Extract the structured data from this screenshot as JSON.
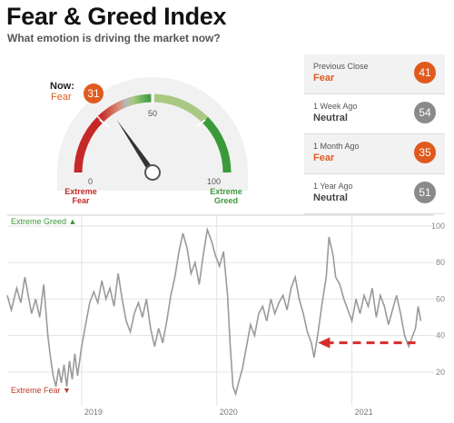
{
  "header": {
    "title": "Fear & Greed Index",
    "subtitle": "What emotion is driving the market now?"
  },
  "gauge": {
    "now_label": "Now:",
    "now_state": "Fear",
    "now_value": 31,
    "min_tick": "0",
    "mid_tick": "50",
    "max_tick": "100",
    "left_caption_1": "Extreme",
    "left_caption_2": "Fear",
    "right_caption_1": "Extreme",
    "right_caption_2": "Greed"
  },
  "history": [
    {
      "label": "Previous Close",
      "state": "Fear",
      "value": "41"
    },
    {
      "label": "1 Week Ago",
      "state": "Neutral",
      "value": "54"
    },
    {
      "label": "1 Month Ago",
      "state": "Fear",
      "value": "35"
    },
    {
      "label": "1 Year Ago",
      "state": "Neutral",
      "value": "51"
    }
  ],
  "colors": {
    "fear": "#e05a1e",
    "neutral": "#8a8a8a",
    "greed": "#3a9a3a",
    "extreme_fear": "#c0392b",
    "line": "#999999",
    "arrow": "#d62c2c"
  },
  "chart_data": {
    "type": "line",
    "top_label": "Extreme Greed",
    "bottom_label": "Extreme Fear",
    "yticks": [
      20,
      40,
      60,
      80,
      100
    ],
    "ylim": [
      5,
      102
    ],
    "year_labels": [
      {
        "label": "2019",
        "x": 2019.0
      },
      {
        "label": "2020",
        "x": 2020.0
      },
      {
        "label": "2021",
        "x": 2021.0
      }
    ],
    "xlim": [
      2018.45,
      2021.52
    ],
    "series": [
      {
        "points": [
          [
            2018.45,
            62
          ],
          [
            2018.48,
            54
          ],
          [
            2018.52,
            66
          ],
          [
            2018.55,
            58
          ],
          [
            2018.58,
            72
          ],
          [
            2018.61,
            60
          ],
          [
            2018.63,
            52
          ],
          [
            2018.66,
            60
          ],
          [
            2018.69,
            50
          ],
          [
            2018.72,
            68
          ],
          [
            2018.75,
            40
          ],
          [
            2018.77,
            28
          ],
          [
            2018.79,
            18
          ],
          [
            2018.81,
            12
          ],
          [
            2018.83,
            22
          ],
          [
            2018.85,
            14
          ],
          [
            2018.87,
            24
          ],
          [
            2018.89,
            12
          ],
          [
            2018.91,
            26
          ],
          [
            2018.93,
            16
          ],
          [
            2018.95,
            30
          ],
          [
            2018.97,
            18
          ],
          [
            2019.0,
            34
          ],
          [
            2019.03,
            46
          ],
          [
            2019.06,
            58
          ],
          [
            2019.09,
            64
          ],
          [
            2019.12,
            58
          ],
          [
            2019.15,
            70
          ],
          [
            2019.18,
            60
          ],
          [
            2019.21,
            66
          ],
          [
            2019.24,
            56
          ],
          [
            2019.27,
            74
          ],
          [
            2019.3,
            60
          ],
          [
            2019.33,
            48
          ],
          [
            2019.36,
            42
          ],
          [
            2019.39,
            52
          ],
          [
            2019.42,
            58
          ],
          [
            2019.45,
            50
          ],
          [
            2019.48,
            60
          ],
          [
            2019.51,
            44
          ],
          [
            2019.54,
            34
          ],
          [
            2019.57,
            44
          ],
          [
            2019.6,
            36
          ],
          [
            2019.63,
            48
          ],
          [
            2019.66,
            62
          ],
          [
            2019.69,
            72
          ],
          [
            2019.72,
            86
          ],
          [
            2019.75,
            96
          ],
          [
            2019.78,
            88
          ],
          [
            2019.81,
            74
          ],
          [
            2019.84,
            80
          ],
          [
            2019.87,
            68
          ],
          [
            2019.9,
            84
          ],
          [
            2019.93,
            98
          ],
          [
            2019.96,
            92
          ],
          [
            2019.99,
            84
          ],
          [
            2020.02,
            78
          ],
          [
            2020.05,
            86
          ],
          [
            2020.08,
            62
          ],
          [
            2020.1,
            34
          ],
          [
            2020.12,
            12
          ],
          [
            2020.14,
            8
          ],
          [
            2020.16,
            14
          ],
          [
            2020.19,
            22
          ],
          [
            2020.22,
            34
          ],
          [
            2020.25,
            46
          ],
          [
            2020.28,
            40
          ],
          [
            2020.31,
            52
          ],
          [
            2020.34,
            56
          ],
          [
            2020.37,
            48
          ],
          [
            2020.4,
            60
          ],
          [
            2020.43,
            52
          ],
          [
            2020.46,
            58
          ],
          [
            2020.49,
            62
          ],
          [
            2020.52,
            54
          ],
          [
            2020.55,
            66
          ],
          [
            2020.58,
            72
          ],
          [
            2020.61,
            60
          ],
          [
            2020.64,
            52
          ],
          [
            2020.67,
            42
          ],
          [
            2020.7,
            36
          ],
          [
            2020.72,
            28
          ],
          [
            2020.75,
            42
          ],
          [
            2020.78,
            58
          ],
          [
            2020.81,
            72
          ],
          [
            2020.83,
            94
          ],
          [
            2020.86,
            84
          ],
          [
            2020.88,
            72
          ],
          [
            2020.91,
            68
          ],
          [
            2020.94,
            60
          ],
          [
            2020.97,
            54
          ],
          [
            2021.0,
            48
          ],
          [
            2021.03,
            60
          ],
          [
            2021.06,
            52
          ],
          [
            2021.09,
            62
          ],
          [
            2021.12,
            56
          ],
          [
            2021.15,
            66
          ],
          [
            2021.18,
            50
          ],
          [
            2021.21,
            62
          ],
          [
            2021.24,
            56
          ],
          [
            2021.27,
            46
          ],
          [
            2021.3,
            54
          ],
          [
            2021.33,
            62
          ],
          [
            2021.36,
            52
          ],
          [
            2021.39,
            40
          ],
          [
            2021.42,
            34
          ],
          [
            2021.45,
            40
          ],
          [
            2021.47,
            44
          ],
          [
            2021.49,
            56
          ],
          [
            2021.51,
            48
          ]
        ]
      }
    ],
    "annotation": {
      "type": "arrow",
      "from_x": 2021.47,
      "to_x": 2020.75,
      "y": 36
    }
  }
}
